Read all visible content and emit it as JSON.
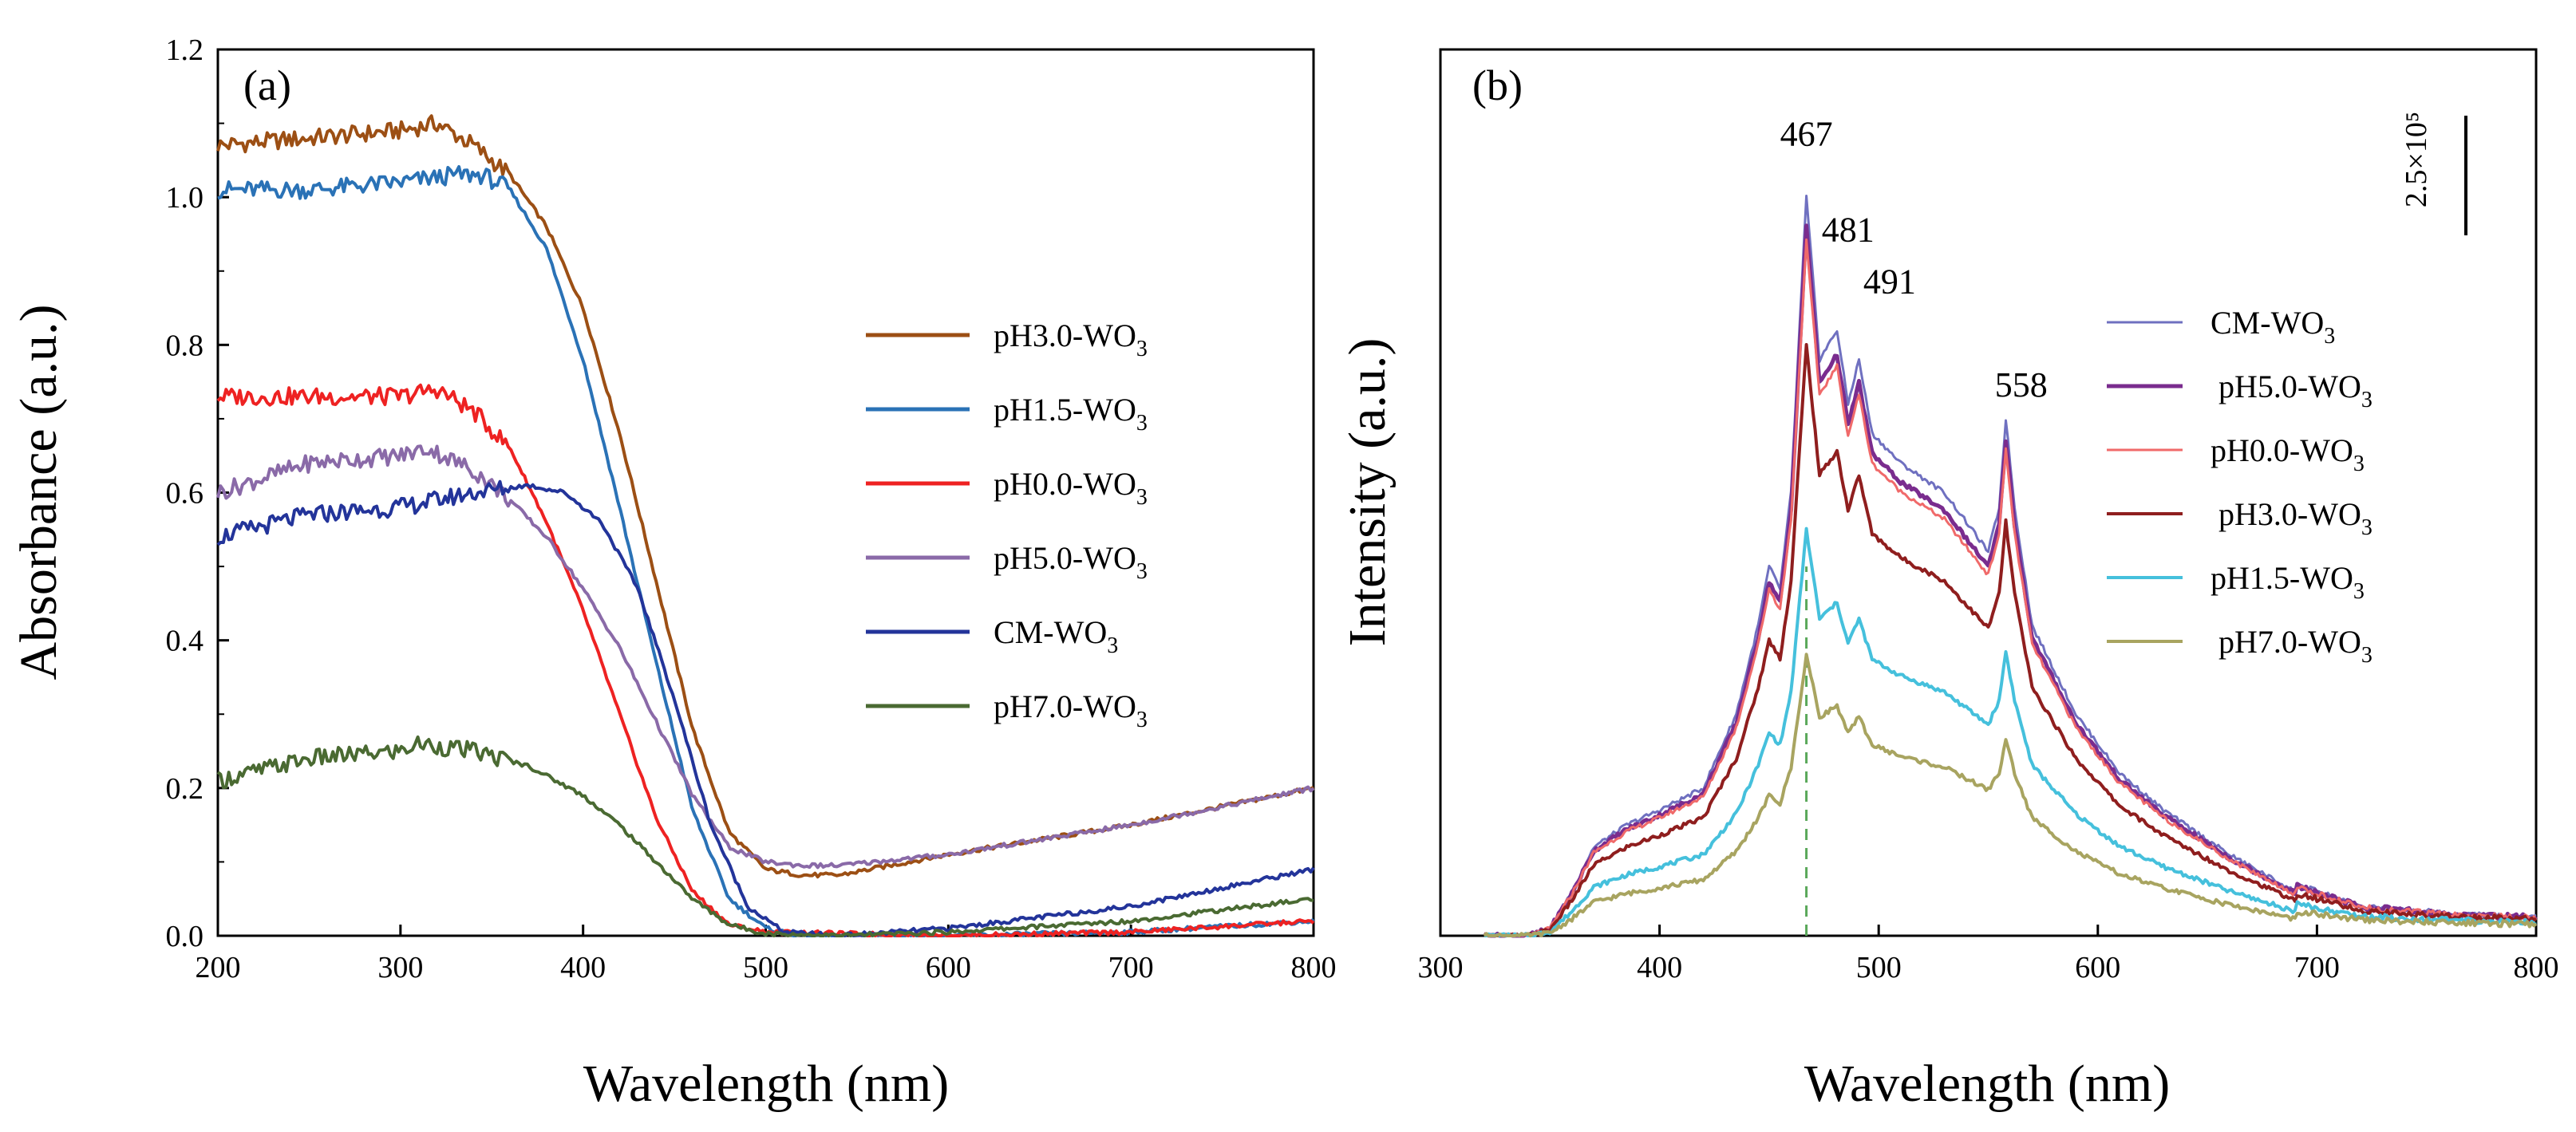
{
  "chart_data": [
    {
      "panel": "(a)",
      "type": "line",
      "xlabel": "Wavelength (nm)",
      "ylabel": "Absorbance (a.u.)",
      "xlim": [
        200,
        800
      ],
      "ylim": [
        0,
        1.2
      ],
      "xticks": [
        "200",
        "300",
        "400",
        "500",
        "600",
        "700",
        "800"
      ],
      "yticks": [
        "0.0",
        "0.2",
        "0.4",
        "0.6",
        "0.8",
        "1.0",
        "1.2"
      ],
      "legend_position": "right",
      "series": [
        {
          "name": "pH3.0-WO3",
          "label": "pH3.0-WO",
          "sub": "3",
          "color": "#9c4f14",
          "points": [
            [
              200,
              1.07
            ],
            [
              250,
              1.08
            ],
            [
              300,
              1.09
            ],
            [
              320,
              1.1
            ],
            [
              340,
              1.07
            ],
            [
              360,
              1.03
            ],
            [
              380,
              0.96
            ],
            [
              400,
              0.85
            ],
            [
              420,
              0.68
            ],
            [
              440,
              0.48
            ],
            [
              460,
              0.28
            ],
            [
              480,
              0.14
            ],
            [
              500,
              0.09
            ],
            [
              520,
              0.082
            ],
            [
              540,
              0.082
            ],
            [
              600,
              0.11
            ],
            [
              700,
              0.15
            ],
            [
              800,
              0.2
            ]
          ]
        },
        {
          "name": "pH1.5-WO3",
          "label": "pH1.5-WO",
          "sub": "3",
          "color": "#2a72b6",
          "points": [
            [
              200,
              1.01
            ],
            [
              250,
              1.01
            ],
            [
              300,
              1.02
            ],
            [
              330,
              1.03
            ],
            [
              345,
              1.03
            ],
            [
              360,
              1.01
            ],
            [
              380,
              0.93
            ],
            [
              400,
              0.78
            ],
            [
              420,
              0.58
            ],
            [
              440,
              0.37
            ],
            [
              460,
              0.17
            ],
            [
              480,
              0.05
            ],
            [
              500,
              0.01
            ],
            [
              520,
              0.0
            ],
            [
              600,
              0.0
            ],
            [
              700,
              0.005
            ],
            [
              800,
              0.02
            ]
          ]
        },
        {
          "name": "pH0.0-WO3",
          "label": "pH0.0-WO",
          "sub": "3",
          "color": "#ee2222",
          "points": [
            [
              200,
              0.73
            ],
            [
              250,
              0.73
            ],
            [
              300,
              0.73
            ],
            [
              320,
              0.74
            ],
            [
              340,
              0.71
            ],
            [
              360,
              0.66
            ],
            [
              380,
              0.56
            ],
            [
              400,
              0.44
            ],
            [
              420,
              0.3
            ],
            [
              440,
              0.16
            ],
            [
              460,
              0.06
            ],
            [
              480,
              0.015
            ],
            [
              500,
              0.005
            ],
            [
              600,
              0.0
            ],
            [
              700,
              0.005
            ],
            [
              800,
              0.02
            ]
          ]
        },
        {
          "name": "pH5.0-WO3",
          "label": "pH5.0-WO",
          "sub": "3",
          "color": "#8a6aa8",
          "points": [
            [
              200,
              0.6
            ],
            [
              250,
              0.64
            ],
            [
              300,
              0.65
            ],
            [
              315,
              0.66
            ],
            [
              340,
              0.63
            ],
            [
              360,
              0.59
            ],
            [
              380,
              0.54
            ],
            [
              400,
              0.47
            ],
            [
              420,
              0.39
            ],
            [
              440,
              0.29
            ],
            [
              460,
              0.19
            ],
            [
              480,
              0.12
            ],
            [
              500,
              0.1
            ],
            [
              520,
              0.095
            ],
            [
              540,
              0.095
            ],
            [
              600,
              0.11
            ],
            [
              700,
              0.15
            ],
            [
              800,
              0.2
            ]
          ]
        },
        {
          "name": "CM-WO3",
          "label": "CM-WO",
          "sub": "3",
          "color": "#23349a",
          "points": [
            [
              200,
              0.54
            ],
            [
              250,
              0.57
            ],
            [
              300,
              0.58
            ],
            [
              340,
              0.6
            ],
            [
              370,
              0.61
            ],
            [
              390,
              0.6
            ],
            [
              410,
              0.56
            ],
            [
              430,
              0.47
            ],
            [
              450,
              0.32
            ],
            [
              470,
              0.15
            ],
            [
              490,
              0.04
            ],
            [
              510,
              0.005
            ],
            [
              540,
              0.0
            ],
            [
              600,
              0.01
            ],
            [
              700,
              0.04
            ],
            [
              800,
              0.09
            ]
          ]
        },
        {
          "name": "pH7.0-WO3",
          "label": "pH7.0-WO",
          "sub": "3",
          "color": "#4a6a32",
          "points": [
            [
              200,
              0.21
            ],
            [
              250,
              0.24
            ],
            [
              300,
              0.25
            ],
            [
              310,
              0.26
            ],
            [
              340,
              0.25
            ],
            [
              370,
              0.23
            ],
            [
              400,
              0.19
            ],
            [
              420,
              0.15
            ],
            [
              440,
              0.1
            ],
            [
              460,
              0.05
            ],
            [
              480,
              0.015
            ],
            [
              500,
              0.003
            ],
            [
              540,
              0.0
            ],
            [
              600,
              0.005
            ],
            [
              700,
              0.02
            ],
            [
              800,
              0.05
            ]
          ]
        }
      ]
    },
    {
      "panel": "(b)",
      "type": "line",
      "xlabel": "Wavelength (nm)",
      "ylabel": "Intensity (a.u.)",
      "xlim": [
        300,
        800
      ],
      "ylim": [
        0,
        1.2
      ],
      "xticks": [
        "300",
        "400",
        "500",
        "600",
        "700",
        "800"
      ],
      "scale_bar_label": "2.5×10⁵",
      "peak_labels": [
        "467",
        "481",
        "491",
        "558"
      ],
      "legend_position": "right",
      "series": [
        {
          "name": "CM-WO3",
          "label": "CM-WO",
          "sub": "3",
          "color": "#6f70c0",
          "scale": 1.0,
          "width": 3
        },
        {
          "name": "pH5.0-WO3",
          "label": "pH5.0-WO",
          "sub": "3",
          "color": "#7a2c8e",
          "scale": 0.96,
          "width": 5
        },
        {
          "name": "pH0.0-WO3",
          "label": "pH0.0-WO",
          "sub": "3",
          "color": "#f06a6a",
          "scale": 0.94,
          "width": 3
        },
        {
          "name": "pH3.0-WO3",
          "label": "pH3.0-WO",
          "sub": "3",
          "color": "#8f1e1e",
          "scale": 0.8,
          "width": 4
        },
        {
          "name": "pH1.5-WO3",
          "label": "pH1.5-WO",
          "sub": "3",
          "color": "#45c0dc",
          "scale": 0.55,
          "width": 4
        },
        {
          "name": "pH7.0-WO3",
          "label": "pH7.0-WO",
          "sub": "3",
          "color": "#a8a460",
          "scale": 0.38,
          "width": 4
        }
      ],
      "base_profile": [
        [
          300,
          0
        ],
        [
          340,
          0.0
        ],
        [
          350,
          0.01
        ],
        [
          360,
          0.06
        ],
        [
          370,
          0.12
        ],
        [
          385,
          0.15
        ],
        [
          400,
          0.17
        ],
        [
          420,
          0.2
        ],
        [
          435,
          0.3
        ],
        [
          445,
          0.42
        ],
        [
          450,
          0.5
        ],
        [
          455,
          0.47
        ],
        [
          460,
          0.6
        ],
        [
          467,
          1.0
        ],
        [
          473,
          0.78
        ],
        [
          481,
          0.82
        ],
        [
          486,
          0.72
        ],
        [
          491,
          0.78
        ],
        [
          497,
          0.68
        ],
        [
          510,
          0.64
        ],
        [
          530,
          0.6
        ],
        [
          550,
          0.52
        ],
        [
          555,
          0.58
        ],
        [
          558,
          0.7
        ],
        [
          562,
          0.58
        ],
        [
          570,
          0.42
        ],
        [
          590,
          0.3
        ],
        [
          610,
          0.22
        ],
        [
          630,
          0.17
        ],
        [
          660,
          0.11
        ],
        [
          690,
          0.06
        ],
        [
          720,
          0.03
        ],
        [
          760,
          0.02
        ],
        [
          800,
          0.015
        ]
      ]
    }
  ]
}
